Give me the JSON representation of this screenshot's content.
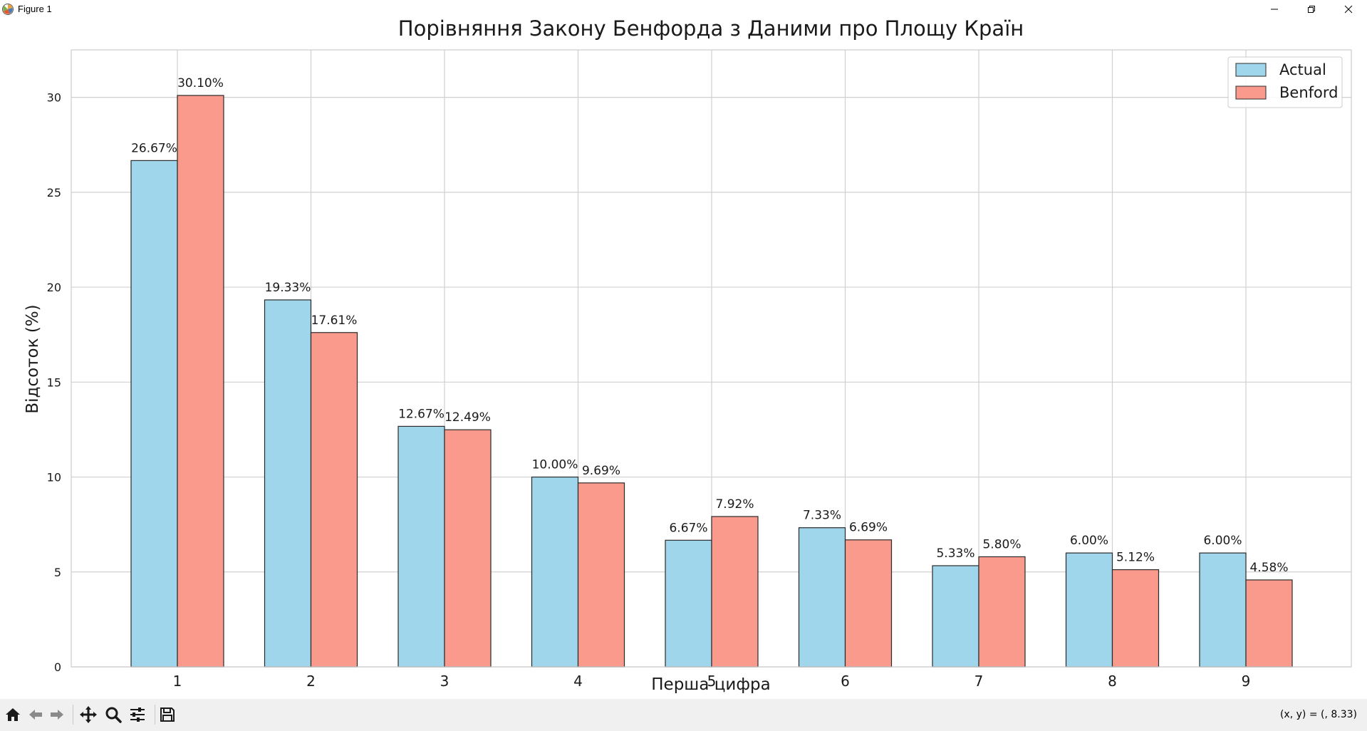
{
  "window": {
    "title": "Figure 1",
    "minimize_label": "minimize",
    "restore_label": "restore",
    "close_label": "close"
  },
  "toolbar": {
    "tools": [
      "home-icon",
      "back-icon",
      "forward-icon",
      "pan-icon",
      "zoom-icon",
      "configure-subplots-icon",
      "save-icon"
    ],
    "coords": "(x, y) = (, 8.33)"
  },
  "colors": {
    "actual": "#a0d6ec",
    "benford": "#f99a8c",
    "grid": "#d0d0d0",
    "edge": "#2a2a2a"
  },
  "chart_data": {
    "type": "bar",
    "title": "Порівняння Закону Бенфорда з Даними про Площу Країн",
    "xlabel": "Перша цифра",
    "ylabel": "Відсоток (%)",
    "categories": [
      "1",
      "2",
      "3",
      "4",
      "5",
      "6",
      "7",
      "8",
      "9"
    ],
    "ylim": [
      0,
      32.5
    ],
    "yticks": [
      0,
      5,
      10,
      15,
      20,
      25,
      30
    ],
    "grid": true,
    "legend_position": "top-right",
    "series": [
      {
        "name": "Actual",
        "values": [
          26.67,
          19.33,
          12.67,
          10.0,
          6.67,
          7.33,
          5.33,
          6.0,
          6.0
        ],
        "labels": [
          "26.67%",
          "19.33%",
          "12.67%",
          "10.00%",
          "6.67%",
          "7.33%",
          "5.33%",
          "6.00%",
          "6.00%"
        ]
      },
      {
        "name": "Benford",
        "values": [
          30.1,
          17.61,
          12.49,
          9.69,
          7.92,
          6.69,
          5.8,
          5.12,
          4.58
        ],
        "labels": [
          "30.10%",
          "17.61%",
          "12.49%",
          "9.69%",
          "7.92%",
          "6.69%",
          "5.80%",
          "5.12%",
          "4.58%"
        ]
      }
    ]
  }
}
